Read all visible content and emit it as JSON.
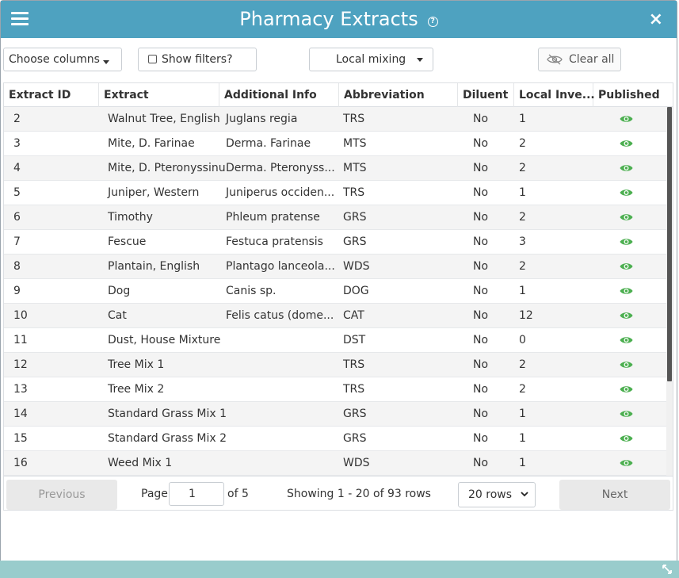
{
  "window": {
    "title": "Pharmacy Extracts",
    "help_glyph": "?",
    "close_glyph": "×",
    "accent_color": "#4ea2c0",
    "footer_color": "#99cccc"
  },
  "toolbar": {
    "choose_columns": "Choose columns",
    "show_filters": "Show filters?",
    "local_mixing": "Local mixing",
    "clear_all": "Clear all"
  },
  "table": {
    "headers": {
      "extract_id": "Extract ID",
      "extract": "Extract",
      "additional_info": "Additional Info",
      "abbreviation": "Abbreviation",
      "diluent": "Diluent",
      "local_inventory": "Local Inve...",
      "published": "Published"
    },
    "published_icon": "eye-icon",
    "published_color": "#4caf50",
    "rows": [
      {
        "id": "2",
        "extract": "Walnut Tree, English",
        "info": "Juglans regia",
        "abbr": "TRS",
        "diluent": "No",
        "inventory": "1"
      },
      {
        "id": "3",
        "extract": "Mite, D. Farinae",
        "info": "Derma. Farinae",
        "abbr": "MTS",
        "diluent": "No",
        "inventory": "2"
      },
      {
        "id": "4",
        "extract": "Mite, D. Pteronyssinu",
        "info": "Derma. Pteronyss...",
        "abbr": "MTS",
        "diluent": "No",
        "inventory": "2"
      },
      {
        "id": "5",
        "extract": "Juniper, Western",
        "info": "Juniperus occiden...",
        "abbr": "TRS",
        "diluent": "No",
        "inventory": "1"
      },
      {
        "id": "6",
        "extract": "Timothy",
        "info": "Phleum pratense",
        "abbr": "GRS",
        "diluent": "No",
        "inventory": "2"
      },
      {
        "id": "7",
        "extract": "Fescue",
        "info": "Festuca pratensis",
        "abbr": "GRS",
        "diluent": "No",
        "inventory": "3"
      },
      {
        "id": "8",
        "extract": "Plantain, English",
        "info": "Plantago lanceola...",
        "abbr": "WDS",
        "diluent": "No",
        "inventory": "2"
      },
      {
        "id": "9",
        "extract": "Dog",
        "info": "Canis sp.",
        "abbr": "DOG",
        "diluent": "No",
        "inventory": "1"
      },
      {
        "id": "10",
        "extract": "Cat",
        "info": "Felis catus (dome...",
        "abbr": "CAT",
        "diluent": "No",
        "inventory": "12"
      },
      {
        "id": "11",
        "extract": "Dust, House Mixture",
        "info": "",
        "abbr": "DST",
        "diluent": "No",
        "inventory": "0"
      },
      {
        "id": "12",
        "extract": "Tree Mix 1",
        "info": "",
        "abbr": "TRS",
        "diluent": "No",
        "inventory": "2"
      },
      {
        "id": "13",
        "extract": "Tree Mix 2",
        "info": "",
        "abbr": "TRS",
        "diluent": "No",
        "inventory": "2"
      },
      {
        "id": "14",
        "extract": "Standard Grass Mix 1",
        "info": "",
        "abbr": "GRS",
        "diluent": "No",
        "inventory": "1"
      },
      {
        "id": "15",
        "extract": "Standard Grass Mix 2",
        "info": "",
        "abbr": "GRS",
        "diluent": "No",
        "inventory": "1"
      },
      {
        "id": "16",
        "extract": "Weed Mix 1",
        "info": "",
        "abbr": "WDS",
        "diluent": "No",
        "inventory": "1"
      }
    ]
  },
  "pagination": {
    "previous": "Previous",
    "page_label": "Page",
    "page_value": "1",
    "of_label": "of 5",
    "showing": "Showing 1 - 20 of 93 rows",
    "rows_select": "20 rows",
    "next": "Next"
  }
}
